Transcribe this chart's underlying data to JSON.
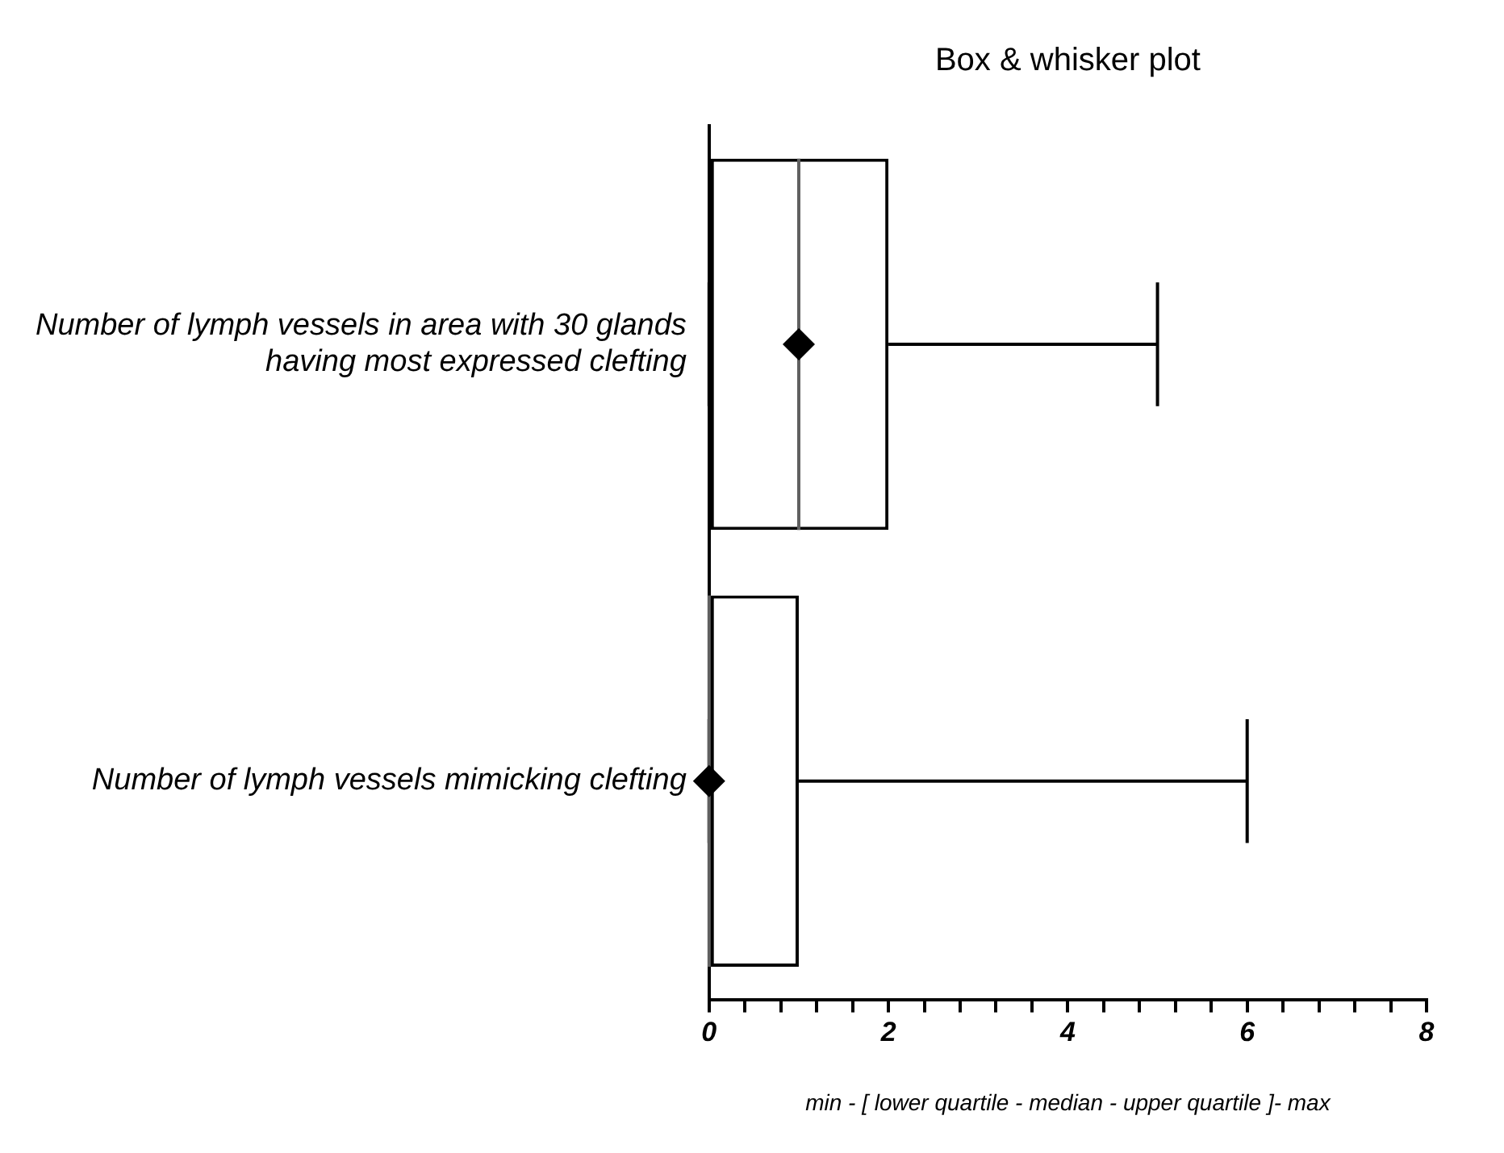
{
  "chart_data": {
    "type": "box",
    "orientation": "horizontal",
    "title": "Box & whisker plot",
    "xlabel": "min - [ lower quartile - median - upper quartile ]- max",
    "categories": [
      "Number of lymph vessels in area with 30 glands having most expressed clefting",
      "Number of lymph vessels mimicking clefting"
    ],
    "boxes": [
      {
        "low": 0,
        "q1": 0,
        "median": 1,
        "q3": 2,
        "high": 5,
        "mean": 1
      },
      {
        "low": 0,
        "q1": 0,
        "median": 0,
        "q3": 1,
        "high": 6,
        "mean": 0
      }
    ],
    "color": "#000000",
    "marker": "diamond",
    "grid": false,
    "legend": false,
    "xlim": [
      0,
      8
    ],
    "xticks": [
      0,
      {
        "value": 0.4,
        "label": null
      },
      {
        "value": 0.8,
        "label": null
      },
      {
        "value": 1.2,
        "label": null
      },
      {
        "value": 1.6,
        "label": null
      },
      2,
      {
        "value": 2.4,
        "label": null
      },
      {
        "value": 2.8,
        "label": null
      },
      {
        "value": 3.2,
        "label": null
      },
      {
        "value": 3.6,
        "label": null
      },
      4,
      {
        "value": 4.4,
        "label": null
      },
      {
        "value": 4.8,
        "label": null
      },
      {
        "value": 5.2,
        "label": null
      },
      {
        "value": 5.6,
        "label": null
      },
      6,
      {
        "value": 6.4,
        "label": null
      },
      {
        "value": 6.8,
        "label": null
      },
      {
        "value": 7.2,
        "label": null
      },
      {
        "value": 7.6,
        "label": null
      },
      8
    ]
  }
}
